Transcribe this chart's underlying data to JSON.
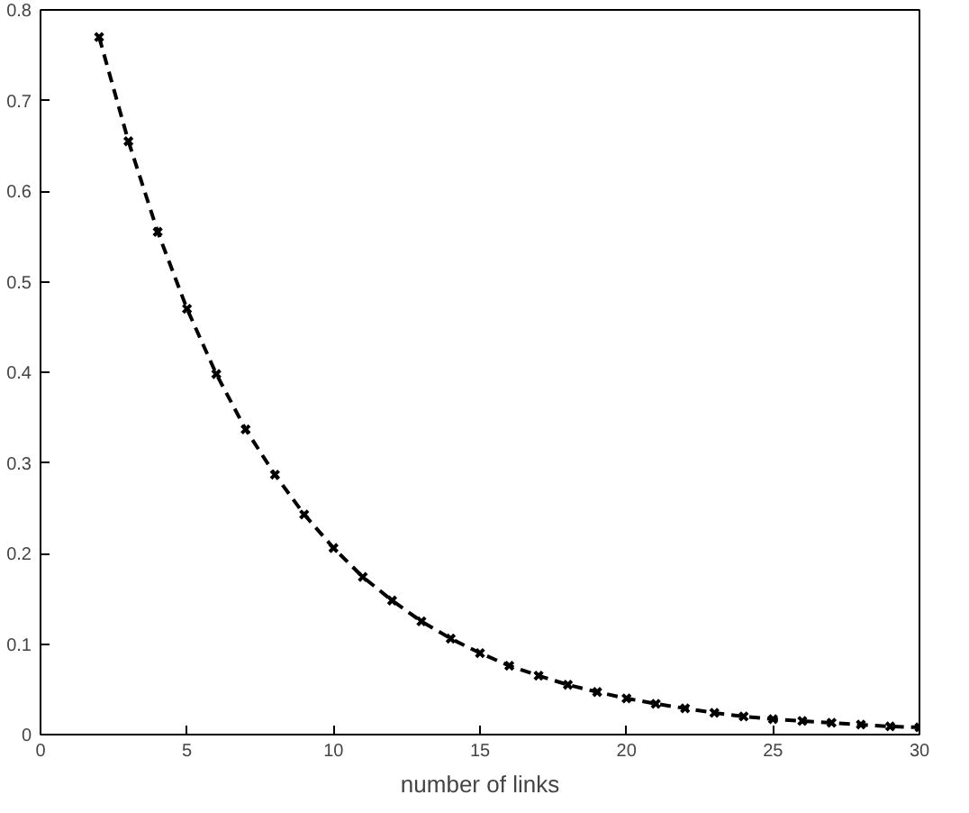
{
  "chart_data": {
    "type": "line",
    "xlabel": "number of links",
    "x": [
      2,
      3,
      4,
      5,
      6,
      7,
      8,
      9,
      10,
      11,
      12,
      13,
      14,
      15,
      16,
      17,
      18,
      19,
      20,
      21,
      22,
      23,
      24,
      25,
      26,
      27,
      28,
      29,
      30
    ],
    "series": [
      {
        "color": "#000000",
        "values": [
          0.77,
          0.655,
          0.555,
          0.47,
          0.398,
          0.337,
          0.287,
          0.243,
          0.206,
          0.174,
          0.148,
          0.125,
          0.106,
          0.09,
          0.076,
          0.065,
          0.055,
          0.047,
          0.04,
          0.034,
          0.029,
          0.024,
          0.02,
          0.017,
          0.015,
          0.013,
          0.011,
          0.009,
          0.008
        ]
      }
    ],
    "xlim": [
      0,
      30
    ],
    "ylim": [
      0,
      0.8
    ],
    "xticks": [
      0,
      5,
      10,
      15,
      20,
      25,
      30
    ],
    "yticks": [
      0,
      0.1,
      0.2,
      0.3,
      0.4,
      0.5,
      0.6,
      0.7,
      0.8
    ],
    "grid": false,
    "marker": "cross",
    "line_style": "dashed"
  }
}
